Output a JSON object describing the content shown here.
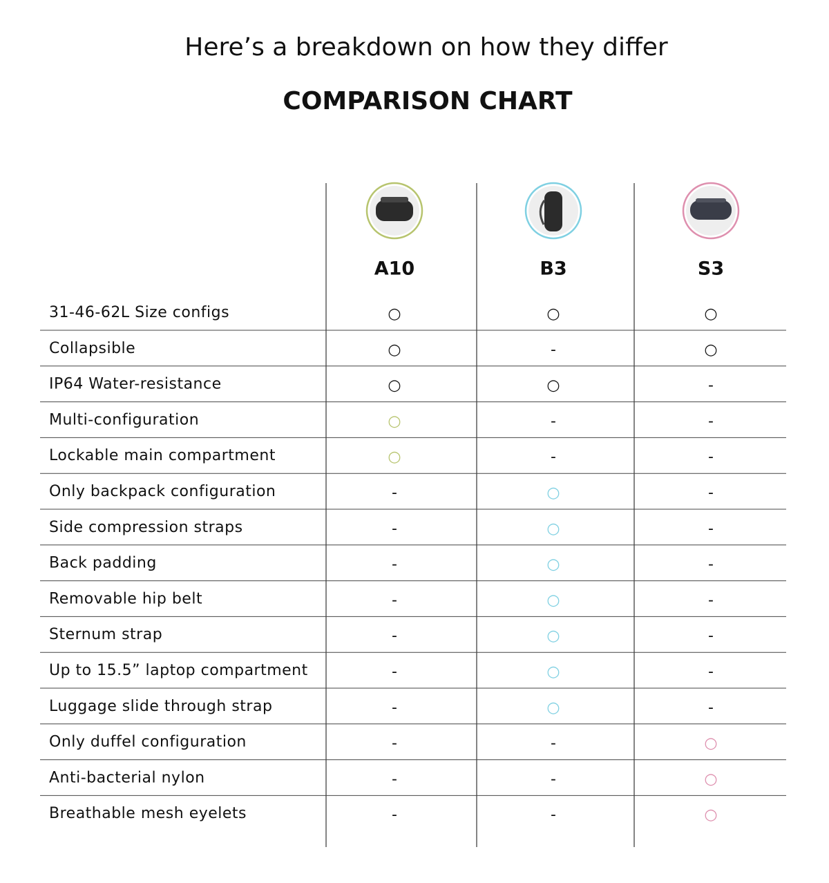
{
  "header": {
    "heading": "Here’s a breakdown on how they differ",
    "title": "COMPARISON CHART"
  },
  "products": [
    {
      "name": "A10",
      "color": "#b7c46e"
    },
    {
      "name": "B3",
      "color": "#7fd0e2"
    },
    {
      "name": "S3",
      "color": "#de8fae"
    }
  ],
  "table": {
    "rows": [
      [
        "31-46-62L Size configs",
        "○",
        "○",
        "○"
      ],
      [
        "Collapsible",
        "○",
        "-",
        "○"
      ],
      [
        "IP64 Water-resistance",
        "○",
        "○",
        "-"
      ],
      [
        "Multi-configuration",
        "○",
        "-",
        "-"
      ],
      [
        "Lockable main compartment",
        "○",
        "-",
        "-"
      ],
      [
        "Only backpack configuration",
        "-",
        "○",
        "-"
      ],
      [
        "Side compression straps",
        "-",
        "○",
        "-"
      ],
      [
        "Back padding",
        "-",
        "○",
        "-"
      ],
      [
        "Removable hip belt",
        "-",
        "○",
        "-"
      ],
      [
        "Sternum strap",
        "-",
        "○",
        "-"
      ],
      [
        "Up to 15.5” laptop compartment",
        "-",
        "○",
        "-"
      ],
      [
        "Luggage slide through strap",
        "-",
        "○",
        "-"
      ],
      [
        "Only duffel configuration",
        "-",
        "-",
        "○"
      ],
      [
        "Anti-bacterial nylon",
        "-",
        "-",
        "○"
      ],
      [
        "Breathable mesh eyelets",
        "-",
        "-",
        "○"
      ]
    ]
  }
}
